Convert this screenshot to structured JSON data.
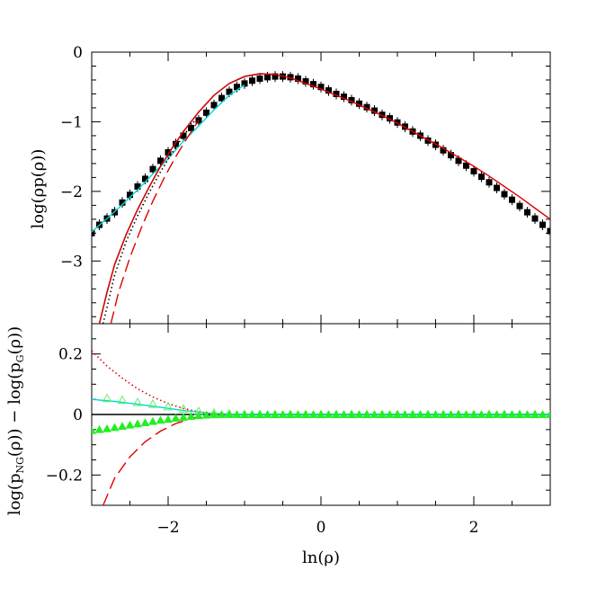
{
  "chart_data": [
    {
      "type": "line",
      "panel": "top",
      "ylabel": "log(ρp(ρ))",
      "xlim": [
        -3,
        3
      ],
      "ylim": [
        -3.9,
        0
      ],
      "x_ticks": [
        -2,
        0,
        2
      ],
      "y_ticks": [
        0,
        -1,
        -2,
        -3
      ],
      "y_tick_labels": [
        "0",
        "−1",
        "−2",
        "−3"
      ],
      "series": [
        {
          "style": "points-square",
          "color": "#000000",
          "x": [
            -3.0,
            -2.9,
            -2.8,
            -2.7,
            -2.6,
            -2.5,
            -2.4,
            -2.3,
            -2.2,
            -2.1,
            -2.0,
            -1.9,
            -1.8,
            -1.7,
            -1.6,
            -1.5,
            -1.4,
            -1.3,
            -1.2,
            -1.1,
            -1.0,
            -0.9,
            -0.8,
            -0.7,
            -0.6,
            -0.5,
            -0.4,
            -0.3,
            -0.2,
            -0.1,
            0.0,
            0.1,
            0.2,
            0.3,
            0.4,
            0.5,
            0.6,
            0.7,
            0.8,
            0.9,
            1.0,
            1.1,
            1.2,
            1.3,
            1.4,
            1.5,
            1.6,
            1.7,
            1.8,
            1.9,
            2.0,
            2.1,
            2.2,
            2.3,
            2.4,
            2.5,
            2.6,
            2.7,
            2.8,
            2.9,
            3.0
          ],
          "y": [
            -2.6,
            -2.48,
            -2.39,
            -2.3,
            -2.16,
            -2.05,
            -1.93,
            -1.82,
            -1.68,
            -1.56,
            -1.44,
            -1.32,
            -1.2,
            -1.09,
            -0.98,
            -0.87,
            -0.76,
            -0.66,
            -0.57,
            -0.5,
            -0.45,
            -0.41,
            -0.38,
            -0.36,
            -0.35,
            -0.35,
            -0.36,
            -0.38,
            -0.42,
            -0.46,
            -0.5,
            -0.55,
            -0.6,
            -0.64,
            -0.69,
            -0.74,
            -0.79,
            -0.84,
            -0.9,
            -0.95,
            -1.01,
            -1.07,
            -1.14,
            -1.2,
            -1.27,
            -1.33,
            -1.41,
            -1.48,
            -1.56,
            -1.63,
            -1.71,
            -1.79,
            -1.87,
            -1.95,
            -2.04,
            -2.12,
            -2.21,
            -2.3,
            -2.39,
            -2.48,
            -2.57
          ]
        },
        {
          "style": "solid",
          "color": "#00d8d8",
          "x": [
            -3.0,
            -2.8,
            -2.6,
            -2.4,
            -2.2,
            -2.0,
            -1.8,
            -1.6,
            -1.4,
            -1.2,
            -1.0
          ],
          "y": [
            -2.58,
            -2.39,
            -2.19,
            -1.98,
            -1.75,
            -1.53,
            -1.28,
            -1.06,
            -0.83,
            -0.62,
            -0.47
          ]
        },
        {
          "style": "dotted",
          "color": "#000000",
          "x": [
            -2.85,
            -2.7,
            -2.55,
            -2.4,
            -2.25,
            -2.1,
            -1.95,
            -1.8,
            -1.65
          ],
          "y": [
            -3.9,
            -3.2,
            -2.72,
            -2.35,
            -2.02,
            -1.72,
            -1.45,
            -1.2,
            -0.98
          ]
        },
        {
          "style": "dashed",
          "color": "#e00000",
          "x": [
            -2.75,
            -2.65,
            -2.5,
            -2.35,
            -2.2,
            -2.05,
            -1.9,
            -1.75,
            -1.6
          ],
          "y": [
            -3.9,
            -3.45,
            -2.95,
            -2.52,
            -2.14,
            -1.8,
            -1.5,
            -1.23,
            -0.98
          ]
        },
        {
          "style": "solid",
          "color": "#000000",
          "x": [
            -2.9,
            -2.8,
            -2.7,
            -2.55,
            -2.4,
            -2.25,
            -2.1,
            -1.95,
            -1.8,
            -1.6,
            -1.4,
            -1.2,
            -1.0,
            -0.8,
            -0.6
          ],
          "y": [
            -3.9,
            -3.45,
            -3.05,
            -2.62,
            -2.26,
            -1.94,
            -1.64,
            -1.38,
            -1.14,
            -0.86,
            -0.62,
            -0.45,
            -0.35,
            -0.31,
            -0.32
          ]
        },
        {
          "style": "solid",
          "color": "#e00000",
          "x": [
            -2.9,
            -2.8,
            -2.7,
            -2.55,
            -2.4,
            -2.25,
            -2.1,
            -1.95,
            -1.8,
            -1.6,
            -1.4,
            -1.2,
            -1.0,
            -0.8,
            -0.6,
            -0.4,
            -0.2,
            0.0,
            0.2,
            0.4,
            0.6,
            0.8,
            1.0,
            1.2,
            1.4,
            1.6,
            1.8,
            2.0,
            2.2,
            2.4,
            2.6,
            2.8,
            3.0
          ],
          "y": [
            -3.9,
            -3.45,
            -3.05,
            -2.62,
            -2.26,
            -1.94,
            -1.64,
            -1.38,
            -1.14,
            -0.86,
            -0.62,
            -0.45,
            -0.35,
            -0.31,
            -0.32,
            -0.37,
            -0.45,
            -0.53,
            -0.62,
            -0.71,
            -0.81,
            -0.91,
            -1.02,
            -1.14,
            -1.26,
            -1.38,
            -1.51,
            -1.64,
            -1.78,
            -1.93,
            -2.08,
            -2.24,
            -2.4
          ]
        }
      ]
    },
    {
      "type": "line",
      "panel": "bottom",
      "xlabel": "ln(ρ)",
      "ylabel_parts": {
        "a": "log(p",
        "a_sub": "NG",
        "b": "(ρ))  − log(p",
        "b_sub": "G",
        "c": "(ρ))"
      },
      "xlim": [
        -3,
        3
      ],
      "ylim": [
        -0.3,
        0.3
      ],
      "x_ticks": [
        -2,
        0,
        2
      ],
      "x_tick_labels": [
        "−2",
        "0",
        "2"
      ],
      "y_ticks": [
        0.2,
        0,
        -0.2
      ],
      "y_tick_labels": [
        "0.2",
        "0",
        "−0.2"
      ],
      "series": [
        {
          "style": "solid",
          "color": "#000000",
          "x": [
            -3.0,
            3.0
          ],
          "y": [
            0.0,
            0.0
          ]
        },
        {
          "style": "dotted",
          "color": "#e00000",
          "x": [
            -3.0,
            -2.8,
            -2.6,
            -2.4,
            -2.2,
            -2.0,
            -1.8,
            -1.6,
            -1.4,
            -1.2
          ],
          "y": [
            0.21,
            0.16,
            0.12,
            0.085,
            0.058,
            0.036,
            0.02,
            0.009,
            0.003,
            0.0
          ]
        },
        {
          "style": "dashed",
          "color": "#e00000",
          "x": [
            -2.85,
            -2.7,
            -2.5,
            -2.3,
            -2.1,
            -1.9,
            -1.7,
            -1.5,
            -1.3
          ],
          "y": [
            -0.3,
            -0.21,
            -0.14,
            -0.09,
            -0.055,
            -0.03,
            -0.013,
            -0.004,
            0.0
          ]
        },
        {
          "style": "solid",
          "color": "#00d8d8",
          "x": [
            -3.0,
            -2.7,
            -2.4,
            -2.1,
            -1.8,
            -1.5,
            -1.2,
            -0.8,
            0.0,
            3.0
          ],
          "y": [
            0.05,
            0.043,
            0.034,
            0.024,
            0.013,
            0.005,
            0.001,
            0.0,
            0.0,
            0.0
          ]
        },
        {
          "style": "points-triangle-open",
          "color": "#66ee66",
          "x": [
            -2.8,
            -2.6,
            -2.4,
            -2.2,
            -2.0,
            -1.8,
            -1.6,
            -1.4,
            -1.2,
            -1.0,
            -0.8,
            -0.6,
            -0.4,
            -0.2,
            0.0,
            0.2,
            0.4,
            0.6,
            0.8,
            1.0,
            1.2,
            1.4,
            1.6,
            1.8,
            2.0,
            2.2,
            2.4,
            2.6,
            2.8
          ],
          "y": [
            0.053,
            0.047,
            0.04,
            0.034,
            0.026,
            0.018,
            0.01,
            0.005,
            0.002,
            0.0,
            0.0,
            0.0,
            0.0,
            0.0,
            0.0,
            0.0,
            0.0,
            0.0,
            0.0,
            0.0,
            0.0,
            0.0,
            0.0,
            0.0,
            0.0,
            0.0,
            0.0,
            0.0,
            0.0
          ]
        },
        {
          "style": "points-triangle",
          "color": "#22ee22",
          "x": [
            -3.0,
            -2.9,
            -2.8,
            -2.7,
            -2.6,
            -2.5,
            -2.4,
            -2.3,
            -2.2,
            -2.1,
            -2.0,
            -1.9,
            -1.8,
            -1.7,
            -1.6,
            -1.5,
            -1.4,
            -1.3,
            -1.2,
            -1.1,
            -1.0,
            -0.9,
            -0.8,
            -0.7,
            -0.6,
            -0.5,
            -0.4,
            -0.3,
            -0.2,
            -0.1,
            0.0,
            0.1,
            0.2,
            0.3,
            0.4,
            0.5,
            0.6,
            0.7,
            0.8,
            0.9,
            1.0,
            1.1,
            1.2,
            1.3,
            1.4,
            1.5,
            1.6,
            1.7,
            1.8,
            1.9,
            2.0,
            2.1,
            2.2,
            2.3,
            2.4,
            2.5,
            2.6,
            2.7,
            2.8,
            2.9,
            3.0
          ],
          "y": [
            -0.053,
            -0.05,
            -0.047,
            -0.043,
            -0.039,
            -0.035,
            -0.031,
            -0.027,
            -0.023,
            -0.019,
            -0.016,
            -0.012,
            -0.009,
            -0.006,
            -0.004,
            -0.002,
            -0.001,
            0.0,
            0.0,
            0.0,
            0.0,
            0.0,
            0.0,
            0.0,
            0.0,
            0.0,
            0.0,
            0.0,
            0.0,
            0.0,
            0.0,
            0.0,
            0.0,
            0.0,
            0.0,
            0.0,
            0.0,
            0.0,
            0.0,
            0.0,
            0.0,
            0.0,
            0.0,
            0.0,
            0.0,
            0.0,
            0.0,
            0.0,
            0.0,
            0.0,
            0.0,
            0.0,
            0.0,
            0.0,
            0.0,
            0.0,
            0.0,
            0.0,
            0.0,
            0.0,
            0.0
          ]
        }
      ]
    }
  ]
}
